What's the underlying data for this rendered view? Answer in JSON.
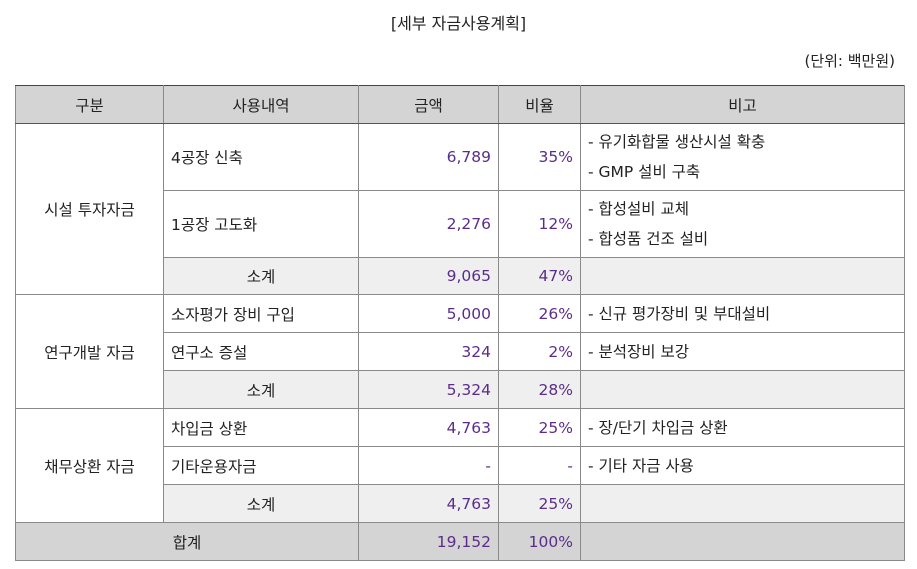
{
  "title": "[세부 자금사용계획]",
  "unit": "(단위: 백만원)",
  "headers": [
    "구분",
    "사용내역",
    "금액",
    "비율",
    "비고"
  ],
  "groups": [
    {
      "category": "시설 투자자금",
      "rows": [
        {
          "item": "4공장 신축",
          "amount": "6,789",
          "ratio": "35%",
          "notes": [
            "- 유기화합물 생산시설 확충",
            "- GMP 설비 구축"
          ]
        },
        {
          "item": "1공장 고도화",
          "amount": "2,276",
          "ratio": "12%",
          "notes": [
            "- 합성설비 교체",
            "- 합성품 건조 설비"
          ]
        }
      ],
      "subtotal": {
        "label": "소계",
        "amount": "9,065",
        "ratio": "47%"
      }
    },
    {
      "category": "연구개발 자금",
      "rows": [
        {
          "item": "소자평가 장비 구입",
          "amount": "5,000",
          "ratio": "26%",
          "notes": [
            "- 신규 평가장비 및 부대설비"
          ]
        },
        {
          "item": "연구소 증설",
          "amount": "324",
          "ratio": "2%",
          "notes": [
            "- 분석장비 보강"
          ]
        }
      ],
      "subtotal": {
        "label": "소계",
        "amount": "5,324",
        "ratio": "28%"
      }
    },
    {
      "category": "채무상환 자금",
      "rows": [
        {
          "item": "차입금 상환",
          "amount": "4,763",
          "ratio": "25%",
          "notes": [
            "- 장/단기 차입금 상환"
          ]
        },
        {
          "item": "기타운용자금",
          "amount": "-",
          "ratio": "-",
          "notes": [
            "- 기타 자금 사용"
          ]
        }
      ],
      "subtotal": {
        "label": "소계",
        "amount": "4,763",
        "ratio": "25%"
      }
    }
  ],
  "total": {
    "label": "합계",
    "amount": "19,152",
    "ratio": "100%"
  }
}
